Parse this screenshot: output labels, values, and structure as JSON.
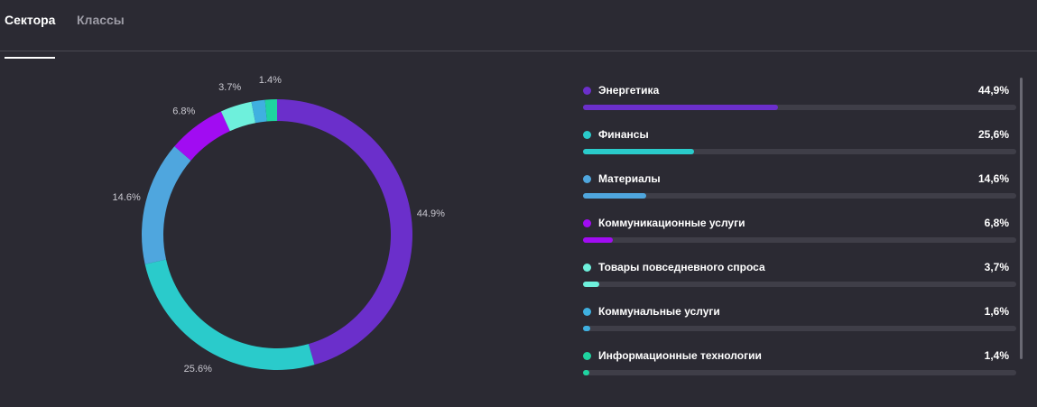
{
  "tabs": [
    {
      "label": "Сектора",
      "active": true
    },
    {
      "label": "Классы",
      "active": false
    }
  ],
  "chart_data": {
    "type": "pie",
    "style": "donut",
    "categories": [
      "Энергетика",
      "Финансы",
      "Материалы",
      "Коммуникационные услуги",
      "Товары повседневного спроса",
      "Коммунальные услуги",
      "Информационные технологии"
    ],
    "values": [
      44.9,
      25.6,
      14.6,
      6.8,
      3.7,
      1.6,
      1.4
    ],
    "slice_labels": [
      "44.9%",
      "25.6%",
      "14.6%",
      "6.8%",
      "3.7%",
      "",
      "1.4%"
    ],
    "colors": [
      "#6b2fcb",
      "#2acbcb",
      "#4fa6de",
      "#a10cf2",
      "#6ef0dc",
      "#3fb0e0",
      "#1fd3a0"
    ],
    "legend": [
      {
        "name": "Энергетика",
        "value": "44,9%",
        "fraction": 0.449
      },
      {
        "name": "Финансы",
        "value": "25,6%",
        "fraction": 0.256
      },
      {
        "name": "Материалы",
        "value": "14,6%",
        "fraction": 0.146
      },
      {
        "name": "Коммуникационные услуги",
        "value": "6,8%",
        "fraction": 0.068
      },
      {
        "name": "Товары повседневного спроса",
        "value": "3,7%",
        "fraction": 0.037
      },
      {
        "name": "Коммунальные услуги",
        "value": "1,6%",
        "fraction": 0.016
      },
      {
        "name": "Информационные технологии",
        "value": "1,4%",
        "fraction": 0.014
      }
    ]
  }
}
